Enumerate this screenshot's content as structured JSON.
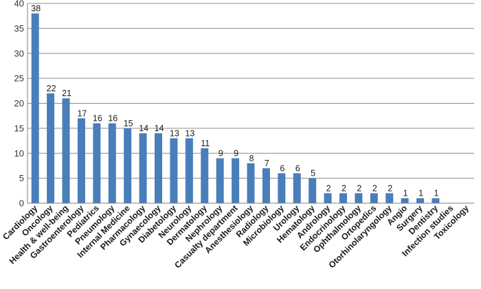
{
  "chart_data": {
    "type": "bar",
    "categories": [
      "Cardiology",
      "Oncology",
      "Health & well-being",
      "Gastroenterology",
      "Pediatrics",
      "Pneumology",
      "Internal Medicine",
      "Pharmacology",
      "Gynaecology",
      "Diabetology",
      "Neurology",
      "Dermatology",
      "Nephrology",
      "Casualty department",
      "Anesthesiology",
      "Radiology",
      "Microbiology",
      "Urology",
      "Hematology",
      "Andrology",
      "Endocrinology",
      "Ophthalmology",
      "Ortopedics",
      "Otorhinolaryngology",
      "Angio",
      "Surgery",
      "Dentistry",
      "Infection studies",
      "Toxicology"
    ],
    "values": [
      38,
      22,
      21,
      17,
      16,
      16,
      15,
      14,
      14,
      13,
      13,
      11,
      9,
      9,
      8,
      7,
      6,
      6,
      5,
      2,
      2,
      2,
      2,
      2,
      1,
      1,
      1,
      0,
      0
    ],
    "data_labels": [
      "38",
      "22",
      "21",
      "17",
      "16",
      "16",
      "15",
      "14",
      "14",
      "13",
      "13",
      "11",
      "9",
      "9",
      "8",
      "7",
      "6",
      "6",
      "5",
      "2",
      "2",
      "2",
      "2",
      "2",
      "1",
      "1",
      "1",
      "",
      ""
    ],
    "title": "",
    "xlabel": "",
    "ylabel": "",
    "ylim": [
      0,
      40
    ],
    "yticks": [
      0,
      5,
      10,
      15,
      20,
      25,
      30,
      35,
      40
    ],
    "grid": true,
    "legend": "none",
    "bar_color": "#4a7ebb",
    "grid_color": "#8c8c8c"
  }
}
